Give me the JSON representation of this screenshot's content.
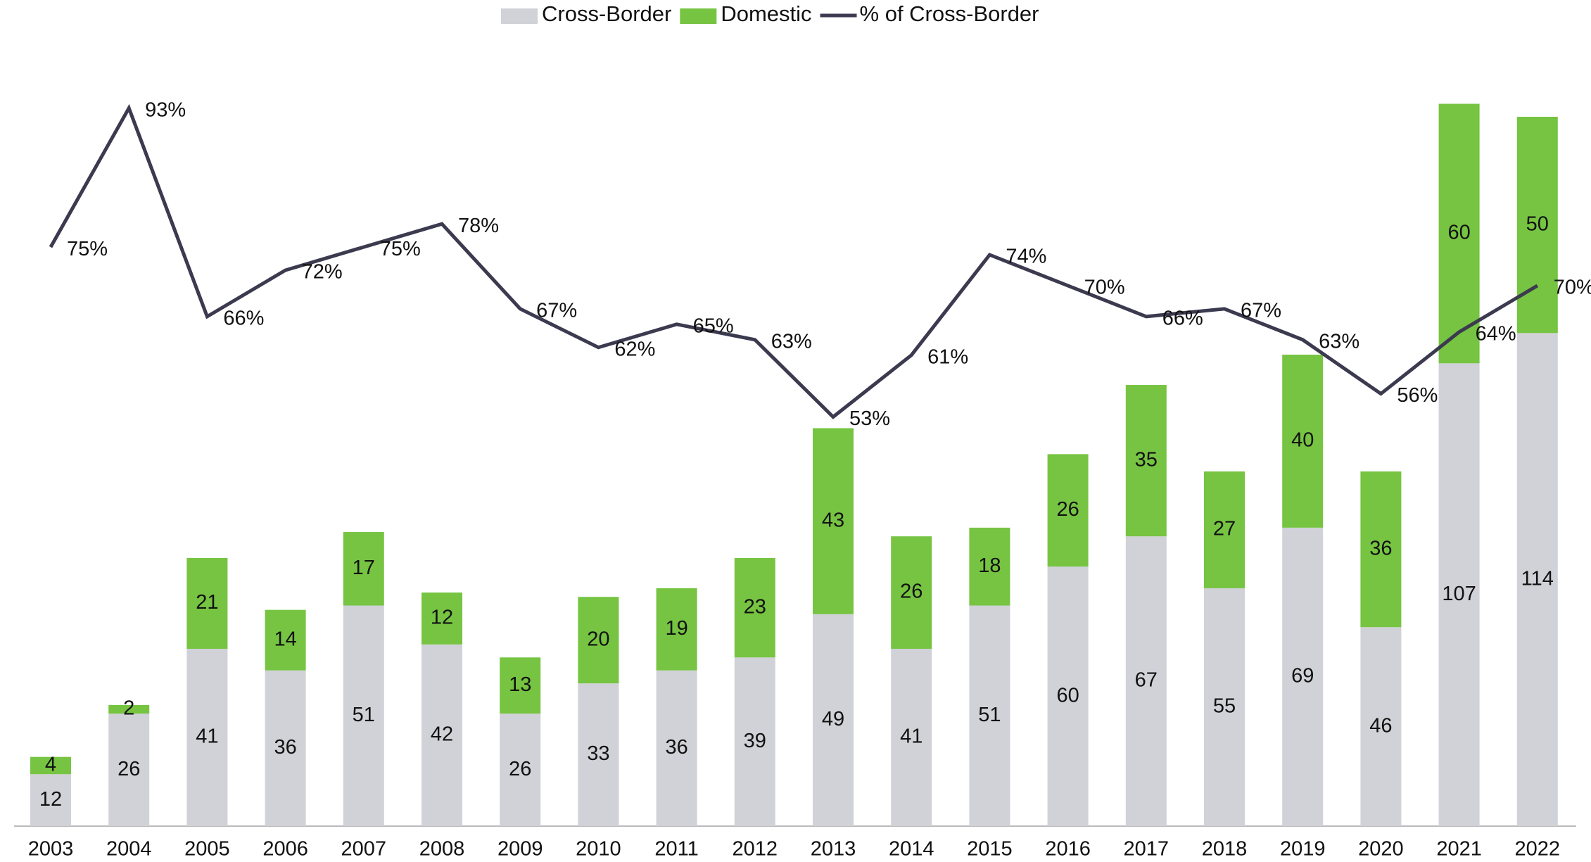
{
  "chart_data": {
    "type": "bar",
    "categories": [
      "2003",
      "2004",
      "2005",
      "2006",
      "2007",
      "2008",
      "2009",
      "2010",
      "2011",
      "2012",
      "2013",
      "2014",
      "2015",
      "2016",
      "2017",
      "2018",
      "2019",
      "2020",
      "2021",
      "2022"
    ],
    "stacked": true,
    "series": [
      {
        "name": "Cross-Border",
        "color": "#d1d1d8",
        "values": [
          12,
          26,
          41,
          36,
          51,
          42,
          26,
          33,
          36,
          39,
          49,
          41,
          51,
          60,
          67,
          55,
          69,
          46,
          107,
          114
        ]
      },
      {
        "name": "Domestic",
        "color": "#76c442",
        "values": [
          4,
          2,
          21,
          14,
          17,
          12,
          13,
          20,
          19,
          23,
          43,
          26,
          18,
          26,
          35,
          27,
          40,
          36,
          60,
          50
        ]
      },
      {
        "name": "% of Cross-Border",
        "type": "line",
        "axis": "y2",
        "color": "#3b3a4f",
        "values": [
          75,
          93,
          66,
          72,
          75,
          78,
          67,
          62,
          65,
          63,
          53,
          61,
          74,
          70,
          66,
          67,
          63,
          56,
          64,
          70
        ],
        "value_labels": [
          "75%",
          "93%",
          "66%",
          "72%",
          "75%",
          "78%",
          "67%",
          "62%",
          "65%",
          "63%",
          "53%",
          "61%",
          "74%",
          "70%",
          "66%",
          "67%",
          "63%",
          "56%",
          "64%",
          "70%"
        ]
      }
    ],
    "ylim": [
      0,
      191
    ],
    "y2lim": [
      0,
      107
    ],
    "legend": "top"
  }
}
